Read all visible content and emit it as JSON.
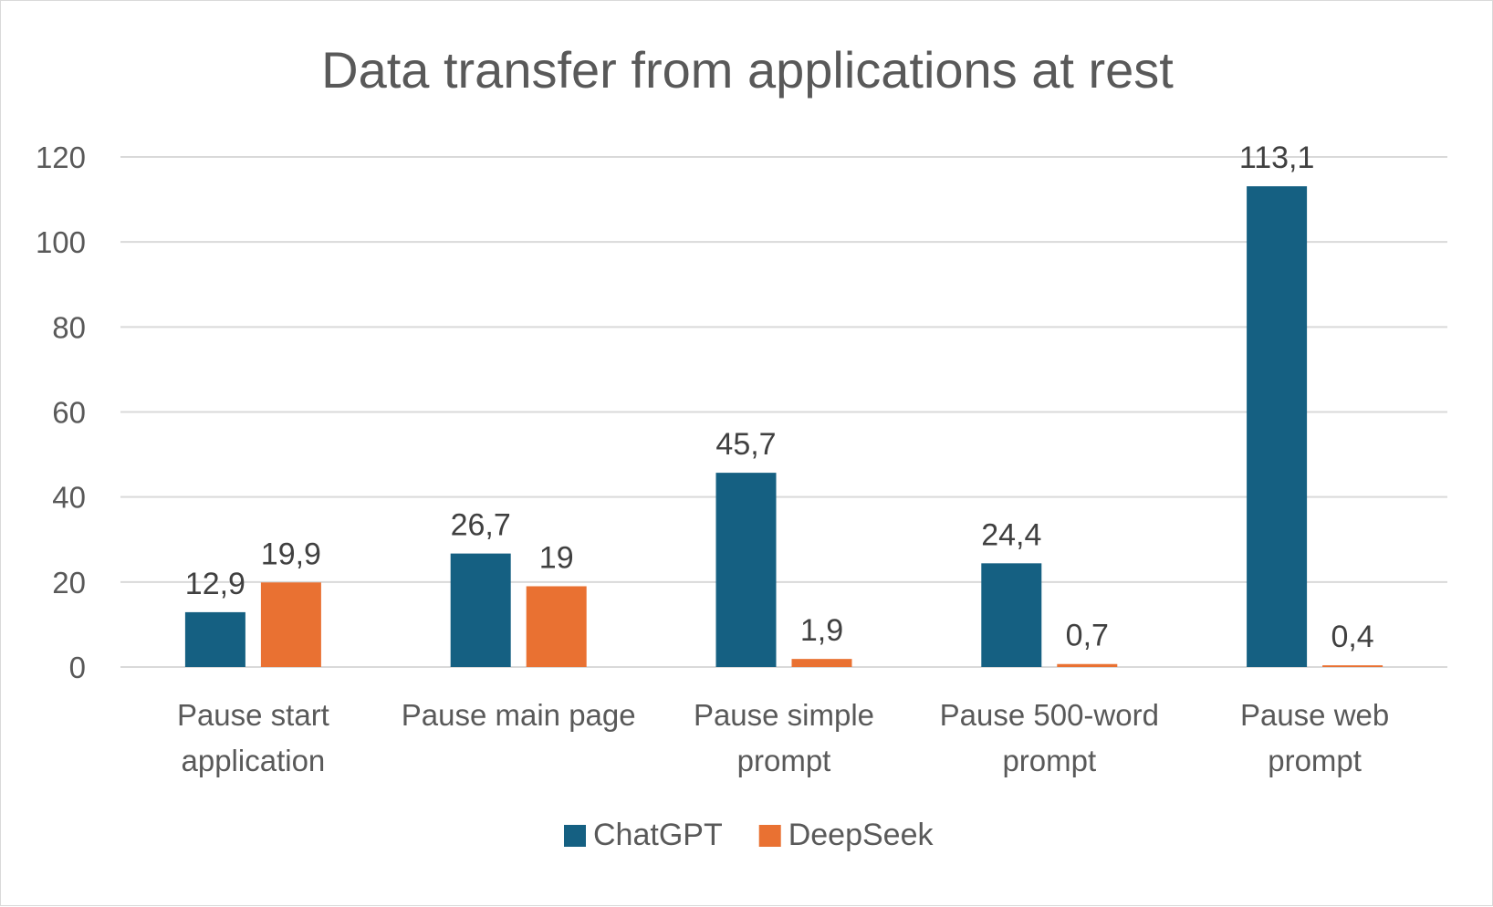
{
  "chart_data": {
    "type": "bar",
    "title": "Data transfer from applications at rest",
    "xlabel": "",
    "ylabel": "",
    "ylim": [
      0,
      120
    ],
    "yticks": [
      0,
      20,
      40,
      60,
      80,
      100,
      120
    ],
    "grid": true,
    "legend_position": "bottom",
    "categories": [
      [
        "Pause start",
        "application"
      ],
      [
        "Pause main page"
      ],
      [
        "Pause simple",
        "prompt"
      ],
      [
        "Pause 500-word",
        "prompt"
      ],
      [
        "Pause web",
        "prompt"
      ]
    ],
    "series": [
      {
        "name": "ChatGPT",
        "color": "#156082",
        "values": [
          12.9,
          26.7,
          45.7,
          24.4,
          113.1
        ],
        "labels": [
          "12,9",
          "26,7",
          "45,7",
          "24,4",
          "113,1"
        ]
      },
      {
        "name": "DeepSeek",
        "color": "#E97132",
        "values": [
          19.9,
          19,
          1.9,
          0.7,
          0.4
        ],
        "labels": [
          "19,9",
          "19",
          "1,9",
          "0,7",
          "0,4"
        ]
      }
    ]
  }
}
